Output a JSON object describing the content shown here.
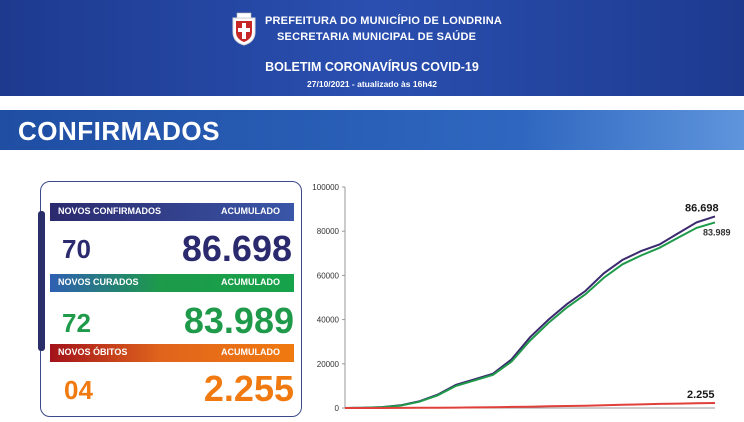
{
  "header": {
    "line1": "PREFEITURA DO MUNICÍPIO DE LONDRINA",
    "line2": "SECRETARIA MUNICIPAL DE SAÚDE",
    "title": "BOLETIM CORONAVÍRUS COVID-19",
    "date": "27/10/2021 - atualizado às 16h42"
  },
  "banner": {
    "title": "CONFIRMADOS"
  },
  "stats": {
    "confirmed": {
      "label": "NOVOS CONFIRMADOS",
      "acc_label": "ACUMULADO",
      "new": "70",
      "total": "86.698",
      "color": "#2b2a6e"
    },
    "cured": {
      "label": "NOVOS CURADOS",
      "acc_label": "ACUMULADO",
      "new": "72",
      "total": "83.989",
      "color": "#1f9a4a"
    },
    "deaths": {
      "label": "NOVOS ÓBITOS",
      "acc_label": "ACUMULADO",
      "new": "04",
      "total": "2.255",
      "color": "#f07a10"
    }
  },
  "chart_data": {
    "type": "line",
    "yticks": [
      "100000",
      "80000",
      "60000",
      "40000",
      "20000",
      "0"
    ],
    "ylim": [
      0,
      100000
    ],
    "x": [
      0,
      5,
      10,
      15,
      20,
      25,
      30,
      35,
      40,
      45,
      50,
      55,
      60,
      65,
      70,
      75,
      80,
      85,
      90,
      95,
      100
    ],
    "series": [
      {
        "color": "#3b2a6e",
        "end_label": "86.698",
        "values": [
          0,
          100,
          400,
          1200,
          3000,
          6000,
          10500,
          13000,
          15500,
          22000,
          32000,
          40000,
          47000,
          53000,
          61000,
          67000,
          71000,
          74000,
          79000,
          84000,
          86698
        ]
      },
      {
        "color": "#1f9a4a",
        "end_label": "83.989",
        "values": [
          0,
          90,
          380,
          1100,
          2800,
          5700,
          10000,
          12500,
          15000,
          21000,
          30500,
          38500,
          45500,
          51500,
          59000,
          65000,
          69000,
          72500,
          77000,
          81500,
          83989
        ]
      },
      {
        "color": "#e0403a",
        "end_label": "2.255",
        "values": [
          0,
          5,
          20,
          50,
          90,
          140,
          200,
          280,
          380,
          480,
          600,
          750,
          900,
          1050,
          1250,
          1450,
          1650,
          1850,
          2000,
          2150,
          2255
        ]
      }
    ]
  }
}
